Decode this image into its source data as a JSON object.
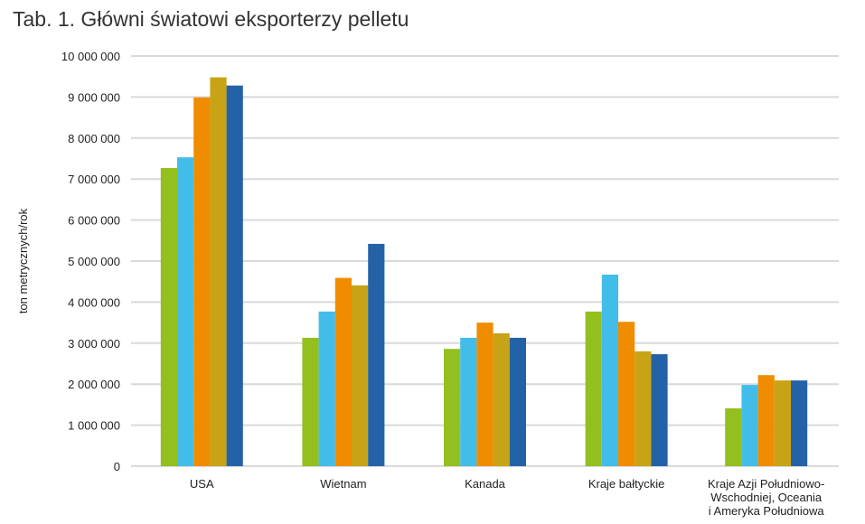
{
  "chart_data": {
    "type": "bar",
    "title": "Tab. 1. Główni światowi eksporterzy pelletu",
    "xlabel": "",
    "ylabel": "ton metrycznych/rok",
    "ylim": [
      0,
      10000000
    ],
    "yticks": [
      0,
      1000000,
      2000000,
      3000000,
      4000000,
      5000000,
      6000000,
      7000000,
      8000000,
      9000000,
      10000000
    ],
    "ytick_labels": [
      "0",
      "1 000 000",
      "2 000 000",
      "3 000 000",
      "4 000 000",
      "5 000 000",
      "6 000 000",
      "7 000 000",
      "8 000 000",
      "9 000 000",
      "10 000 000"
    ],
    "grid": true,
    "categories": [
      [
        "USA"
      ],
      [
        "Wietnam"
      ],
      [
        "Kanada"
      ],
      [
        "Kraje bałtyckie"
      ],
      [
        "Kraje Azji Południowo-",
        "Wschodniej, Oceania",
        "i Ameryka Południowa"
      ]
    ],
    "series": [
      {
        "color": "#93c01f",
        "values": [
          7270000,
          3130000,
          2860000,
          3770000,
          1410000
        ]
      },
      {
        "color": "#42bdea",
        "values": [
          7530000,
          3770000,
          3130000,
          4670000,
          1980000
        ]
      },
      {
        "color": "#f08c00",
        "values": [
          8990000,
          4590000,
          3500000,
          3520000,
          2220000
        ]
      },
      {
        "color": "#c8a315",
        "values": [
          9480000,
          4410000,
          3240000,
          2800000,
          2090000
        ]
      },
      {
        "color": "#2462a8",
        "values": [
          9280000,
          5420000,
          3130000,
          2730000,
          2090000
        ]
      }
    ]
  }
}
